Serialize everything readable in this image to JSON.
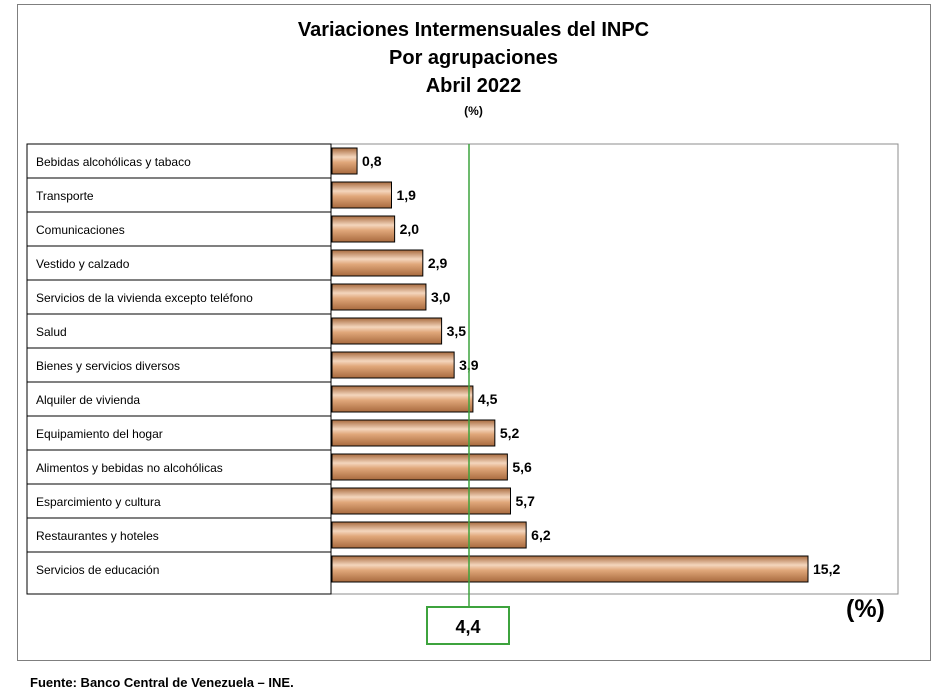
{
  "title_lines": [
    "Variaciones Intermensuales del INPC",
    "Por agrupaciones",
    "Abril 2022",
    "(%)"
  ],
  "unit_label": "(%)",
  "source": "Fuente: Banco Central de Venezuela – INE.",
  "colors": {
    "bar": "#e0a77a",
    "bar_light": "#f4d6bd",
    "bar_dark": "#a86a3e",
    "reference_line": "#3da33d"
  },
  "chart_data": {
    "type": "bar",
    "orientation": "horizontal",
    "title": "Variaciones Intermensuales del INPC",
    "subtitle": "Por agrupaciones — Abril 2022",
    "categories": [
      "Bebidas alcohólicas y tabaco",
      "Transporte",
      "Comunicaciones",
      "Vestido y calzado",
      "Servicios de la vivienda excepto teléfono",
      "Salud",
      "Bienes y servicios diversos",
      "Alquiler de vivienda",
      "Equipamiento del hogar",
      "Alimentos y bebidas no alcohólicas",
      "Esparcimiento y cultura",
      "Restaurantes y hoteles",
      "Servicios de educación"
    ],
    "values": [
      0.8,
      1.9,
      2.0,
      2.9,
      3.0,
      3.5,
      3.9,
      4.5,
      5.2,
      5.6,
      5.7,
      6.2,
      15.2
    ],
    "value_labels": [
      "0,8",
      "1,9",
      "2,0",
      "2,9",
      "3,0",
      "3,5",
      "3,9",
      "4,5",
      "5,2",
      "5,6",
      "5,7",
      "6,2",
      "15,2"
    ],
    "reference_line": {
      "value": 4.4,
      "label": "4,4"
    },
    "xlim": [
      0,
      15.2
    ],
    "grid": false,
    "legend": "none"
  }
}
